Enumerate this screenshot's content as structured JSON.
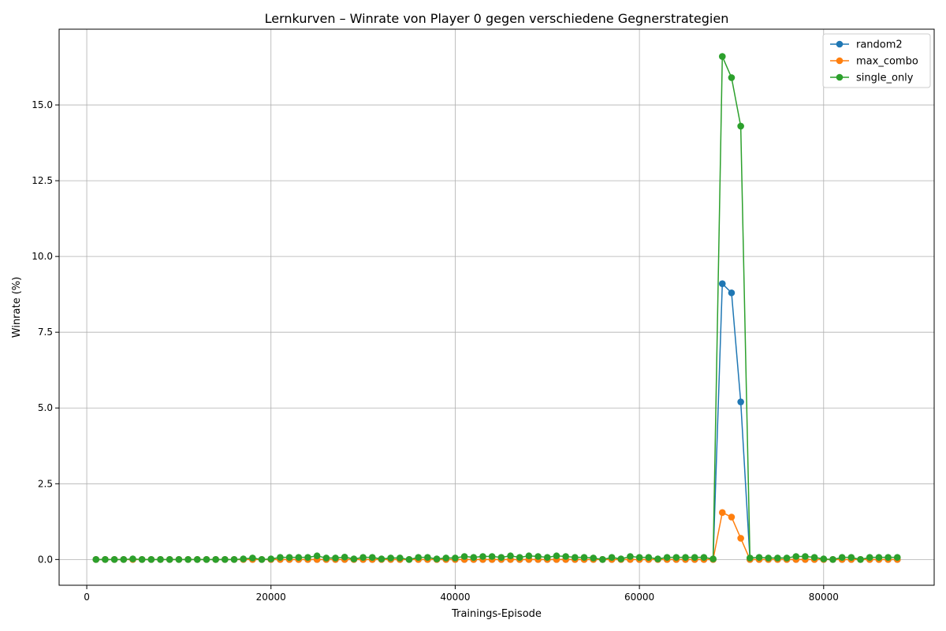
{
  "chart_data": {
    "type": "line",
    "title": "Lernkurven – Winrate von Player 0 gegen verschiedene Gegnerstrategien",
    "xlabel": "Trainings-Episode",
    "ylabel": "Winrate (%)",
    "xlim": [
      -3000,
      92000
    ],
    "ylim": [
      -0.85,
      17.5
    ],
    "xticks": [
      0,
      20000,
      40000,
      60000,
      80000
    ],
    "xtick_labels": [
      "0",
      "20000",
      "40000",
      "60000",
      "80000"
    ],
    "yticks": [
      0.0,
      2.5,
      5.0,
      7.5,
      10.0,
      12.5,
      15.0
    ],
    "ytick_labels": [
      "0.0",
      "2.5",
      "5.0",
      "7.5",
      "10.0",
      "12.5",
      "15.0"
    ],
    "grid": true,
    "legend_position": "top-right",
    "x": [
      1000,
      2000,
      3000,
      4000,
      5000,
      6000,
      7000,
      8000,
      9000,
      10000,
      11000,
      12000,
      13000,
      14000,
      15000,
      16000,
      17000,
      18000,
      19000,
      20000,
      21000,
      22000,
      23000,
      24000,
      25000,
      26000,
      27000,
      28000,
      29000,
      30000,
      31000,
      32000,
      33000,
      34000,
      35000,
      36000,
      37000,
      38000,
      39000,
      40000,
      41000,
      42000,
      43000,
      44000,
      45000,
      46000,
      47000,
      48000,
      49000,
      50000,
      51000,
      52000,
      53000,
      54000,
      55000,
      56000,
      57000,
      58000,
      59000,
      60000,
      61000,
      62000,
      63000,
      64000,
      65000,
      66000,
      67000,
      68000,
      69000,
      70000,
      71000,
      72000,
      73000,
      74000,
      75000,
      76000,
      77000,
      78000,
      79000,
      80000,
      81000,
      82000,
      83000,
      84000,
      85000,
      86000,
      87000,
      88000
    ],
    "series": [
      {
        "name": "random2",
        "color": "#1f77b4",
        "values": [
          0,
          0,
          0,
          0,
          0,
          0,
          0,
          0,
          0,
          0,
          0,
          0,
          0,
          0,
          0,
          0,
          0,
          0,
          0,
          0,
          0,
          0,
          0,
          0,
          0,
          0,
          0,
          0,
          0,
          0,
          0,
          0,
          0,
          0,
          0,
          0,
          0,
          0,
          0,
          0,
          0,
          0,
          0,
          0,
          0,
          0,
          0,
          0,
          0,
          0,
          0,
          0,
          0,
          0,
          0,
          0,
          0,
          0,
          0,
          0,
          0,
          0,
          0,
          0,
          0,
          0,
          0,
          0,
          9.1,
          8.8,
          5.2,
          0,
          0,
          0,
          0,
          0,
          0,
          0,
          0,
          0,
          0,
          0,
          0,
          0,
          0,
          0,
          0,
          0
        ]
      },
      {
        "name": "max_combo",
        "color": "#ff7f0e",
        "values": [
          0,
          0,
          0,
          0,
          0,
          0,
          0,
          0,
          0,
          0,
          0,
          0,
          0,
          0,
          0,
          0,
          0,
          0,
          0,
          0,
          0,
          0,
          0,
          0,
          0,
          0,
          0,
          0,
          0,
          0,
          0,
          0,
          0,
          0,
          0,
          0,
          0,
          0,
          0,
          0,
          0,
          0,
          0,
          0,
          0,
          0,
          0,
          0,
          0,
          0,
          0,
          0,
          0,
          0,
          0,
          0,
          0,
          0,
          0,
          0,
          0,
          0,
          0,
          0,
          0,
          0,
          0,
          0,
          1.55,
          1.4,
          0.7,
          0,
          0,
          0,
          0,
          0,
          0,
          0,
          0,
          0,
          0,
          0,
          0,
          0,
          0,
          0,
          0,
          0
        ]
      },
      {
        "name": "single_only",
        "color": "#2ca02c",
        "values": [
          0,
          0,
          0,
          0,
          0.02,
          0,
          0,
          0,
          0,
          0,
          0,
          0,
          0,
          0,
          0,
          0,
          0.02,
          0.05,
          0,
          0.02,
          0.07,
          0.07,
          0.07,
          0.07,
          0.12,
          0.05,
          0.05,
          0.08,
          0.02,
          0.07,
          0.07,
          0.02,
          0.05,
          0.05,
          0,
          0.07,
          0.07,
          0.02,
          0.05,
          0.05,
          0.1,
          0.07,
          0.1,
          0.1,
          0.07,
          0.12,
          0.07,
          0.12,
          0.1,
          0.07,
          0.12,
          0.1,
          0.07,
          0.07,
          0.05,
          0,
          0.07,
          0.02,
          0.1,
          0.07,
          0.07,
          0.02,
          0.07,
          0.07,
          0.07,
          0.07,
          0.07,
          0.02,
          16.6,
          15.9,
          14.3,
          0.05,
          0.07,
          0.05,
          0.05,
          0.05,
          0.1,
          0.1,
          0.07,
          0.02,
          0,
          0.07,
          0.07,
          0,
          0.07,
          0.07,
          0.07,
          0.07
        ]
      }
    ]
  }
}
